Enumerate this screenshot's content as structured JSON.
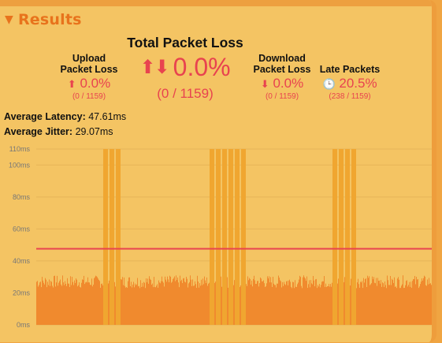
{
  "section": {
    "title": "Results",
    "toggle_icon": "triangle-down-icon"
  },
  "total_packet_loss": {
    "label": "Total Packet Loss",
    "arrows": "⬆⬇",
    "value": "0.0%",
    "count": "(0 / 1159)"
  },
  "upload_packet_loss": {
    "label_line1": "Upload",
    "label_line2": "Packet Loss",
    "arrow": "⬆",
    "value": "0.0%",
    "count": "(0 / 1159)"
  },
  "download_packet_loss": {
    "label_line1": "Download",
    "label_line2": "Packet Loss",
    "arrow": "⬇",
    "value": "0.0%",
    "count": "(0 / 1159)"
  },
  "late_packets": {
    "label": "Late Packets",
    "icon": "clock-icon",
    "icon_glyph": "🕒",
    "value": "20.5%",
    "count": "(238 / 1159)"
  },
  "average_latency": {
    "label": "Average Latency:",
    "value": "47.61ms"
  },
  "average_jitter": {
    "label": "Average Jitter:",
    "value": "29.07ms"
  },
  "colors": {
    "accent": "#e8731c",
    "loss_red": "#e8434f",
    "bars": "#f08a2e",
    "spike_bars": "#f0a630",
    "avg_line": "#e8434f"
  },
  "chart_data": {
    "type": "bar",
    "ylim": [
      0,
      110
    ],
    "y_ticks": [
      "0ms",
      "20ms",
      "40ms",
      "60ms",
      "80ms",
      "100ms",
      "110ms"
    ],
    "y_tick_values": [
      0,
      20,
      40,
      60,
      80,
      100,
      110
    ],
    "average_line": 47.61,
    "baseline_value_range": [
      23,
      31
    ],
    "spike_groups": [
      {
        "bars": 3,
        "value": 110
      },
      {
        "bars": 6,
        "value": 110
      },
      {
        "bars": 4,
        "value": 110
      }
    ]
  }
}
